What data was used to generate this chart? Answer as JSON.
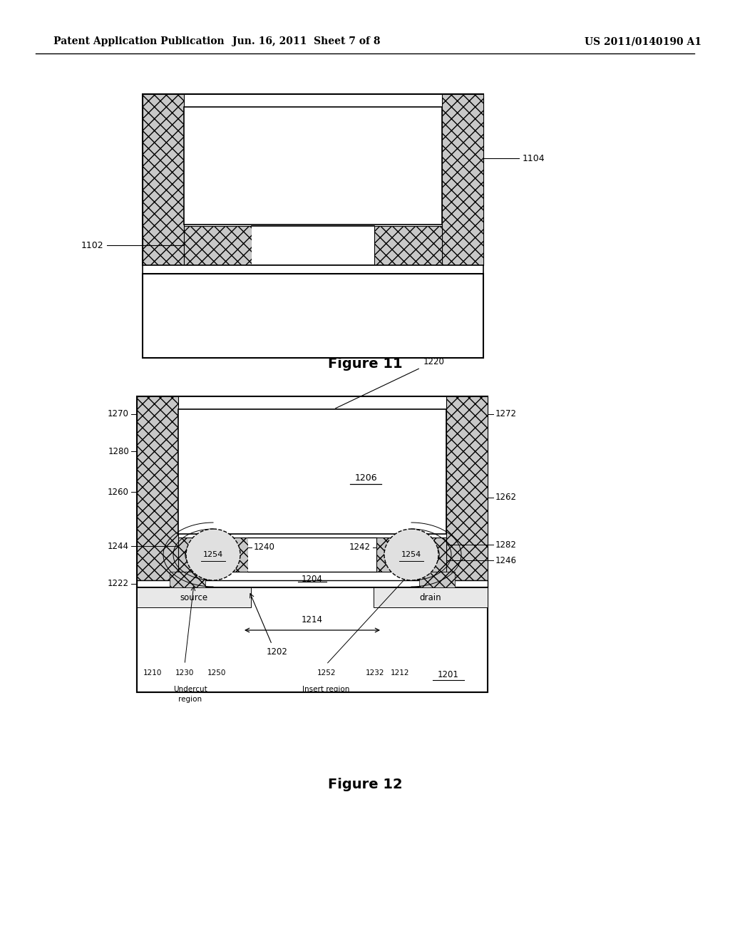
{
  "bg_color": "#ffffff",
  "header_left": "Patent Application Publication",
  "header_center": "Jun. 16, 2011  Sheet 7 of 8",
  "header_right": "US 2011/0140190 A1",
  "fig11_label": "Figure 11",
  "fig12_label": "Figure 12",
  "hatch_fc": "#c8c8c8",
  "line_color": "#000000"
}
